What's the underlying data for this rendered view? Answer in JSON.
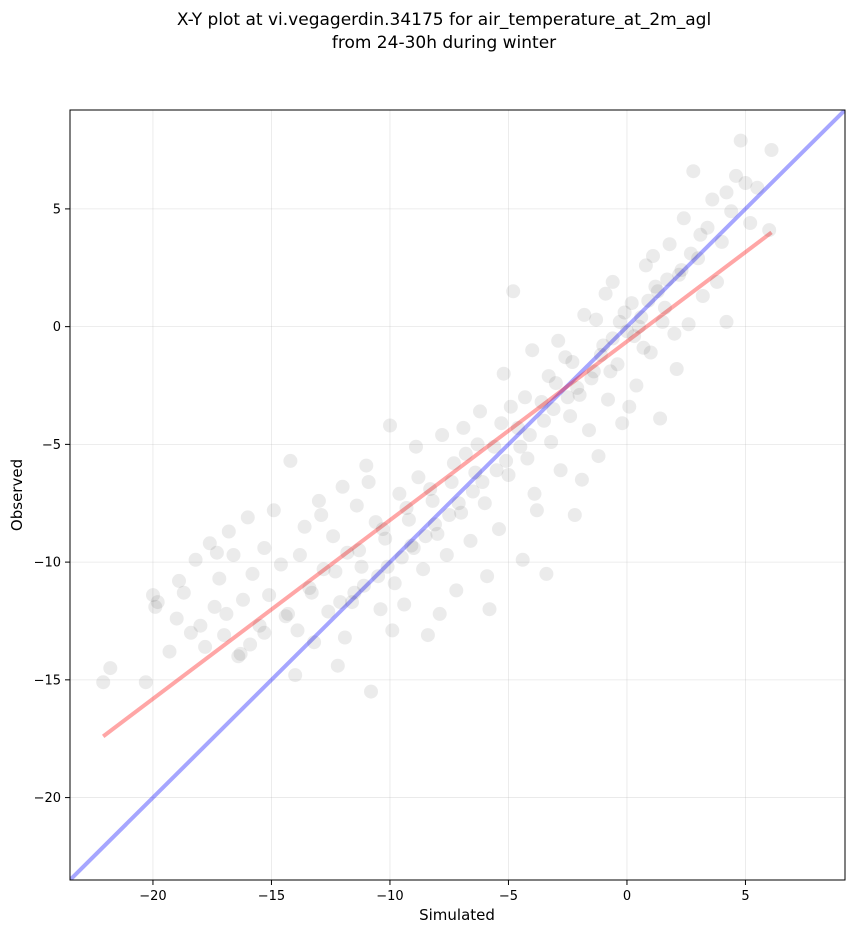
{
  "chart_data": {
    "type": "scatter",
    "title": "X-Y plot at vi.vegagerdin.34175 for air_temperature_at_2m_agl",
    "subtitle": "from 24-30h during winter",
    "xlabel": "Simulated",
    "ylabel": "Observed",
    "xlim": [
      -23.5,
      9.2
    ],
    "ylim": [
      -23.5,
      9.2
    ],
    "xticks": [
      -20,
      -15,
      -10,
      -5,
      0,
      5
    ],
    "yticks": [
      -20,
      -15,
      -10,
      -5,
      0,
      5
    ],
    "xtick_labels": [
      "−20",
      "−15",
      "−10",
      "−5",
      "0",
      "5"
    ],
    "ytick_labels": [
      "−20",
      "−15",
      "−10",
      "−5",
      "0",
      "5"
    ],
    "grid": true,
    "point_color": "#000000",
    "point_opacity": 0.08,
    "points": [
      [
        -22.1,
        -15.1
      ],
      [
        -21.8,
        -14.5
      ],
      [
        -20.3,
        -15.1
      ],
      [
        -20.0,
        -11.4
      ],
      [
        -19.8,
        -11.7
      ],
      [
        -19.3,
        -13.8
      ],
      [
        -19.0,
        -12.4
      ],
      [
        -18.7,
        -11.3
      ],
      [
        -18.4,
        -13.0
      ],
      [
        -18.2,
        -9.9
      ],
      [
        -18.0,
        -12.7
      ],
      [
        -17.8,
        -13.6
      ],
      [
        -17.6,
        -9.2
      ],
      [
        -17.4,
        -11.9
      ],
      [
        -17.2,
        -10.7
      ],
      [
        -17.0,
        -13.1
      ],
      [
        -16.8,
        -8.7
      ],
      [
        -16.6,
        -9.7
      ],
      [
        -16.4,
        -14.0
      ],
      [
        -16.2,
        -11.6
      ],
      [
        -16.0,
        -8.1
      ],
      [
        -15.8,
        -10.5
      ],
      [
        -15.5,
        -12.7
      ],
      [
        -15.3,
        -9.4
      ],
      [
        -15.1,
        -11.4
      ],
      [
        -14.9,
        -7.8
      ],
      [
        -14.6,
        -10.1
      ],
      [
        -14.4,
        -12.3
      ],
      [
        -14.2,
        -5.7
      ],
      [
        -14.0,
        -14.8
      ],
      [
        -13.8,
        -9.7
      ],
      [
        -13.6,
        -8.5
      ],
      [
        -13.4,
        -11.1
      ],
      [
        -13.2,
        -13.4
      ],
      [
        -13.0,
        -7.4
      ],
      [
        -12.8,
        -10.3
      ],
      [
        -12.6,
        -12.1
      ],
      [
        -12.4,
        -8.9
      ],
      [
        -12.2,
        -14.4
      ],
      [
        -12.0,
        -6.8
      ],
      [
        -11.8,
        -9.6
      ],
      [
        -11.6,
        -11.7
      ],
      [
        -11.4,
        -7.6
      ],
      [
        -11.2,
        -10.2
      ],
      [
        -11.0,
        -5.9
      ],
      [
        -10.8,
        -15.5
      ],
      [
        -10.6,
        -8.3
      ],
      [
        -10.4,
        -12.0
      ],
      [
        -10.2,
        -9.0
      ],
      [
        -10.0,
        -4.2
      ],
      [
        -9.8,
        -10.9
      ],
      [
        -9.6,
        -7.1
      ],
      [
        -9.4,
        -11.8
      ],
      [
        -9.2,
        -8.2
      ],
      [
        -9.0,
        -9.4
      ],
      [
        -8.8,
        -6.4
      ],
      [
        -8.6,
        -10.3
      ],
      [
        -8.4,
        -13.1
      ],
      [
        -8.2,
        -7.4
      ],
      [
        -8.0,
        -8.8
      ],
      [
        -7.8,
        -4.6
      ],
      [
        -7.6,
        -9.7
      ],
      [
        -7.4,
        -6.6
      ],
      [
        -7.2,
        -11.2
      ],
      [
        -7.0,
        -7.9
      ],
      [
        -6.8,
        -5.4
      ],
      [
        -6.6,
        -9.1
      ],
      [
        -6.4,
        -6.2
      ],
      [
        -6.2,
        -3.6
      ],
      [
        -6.0,
        -7.5
      ],
      [
        -5.8,
        -12.0
      ],
      [
        -5.6,
        -5.1
      ],
      [
        -5.4,
        -8.6
      ],
      [
        -5.2,
        -2.0
      ],
      [
        -5.0,
        -6.3
      ],
      [
        -4.8,
        1.5
      ],
      [
        -4.6,
        -4.3
      ],
      [
        -4.4,
        -9.9
      ],
      [
        -4.2,
        -5.6
      ],
      [
        -4.0,
        -1.0
      ],
      [
        -3.8,
        -7.8
      ],
      [
        -3.6,
        -3.2
      ],
      [
        -3.4,
        -10.5
      ],
      [
        -3.2,
        -4.9
      ],
      [
        -3.0,
        -2.4
      ],
      [
        -2.8,
        -6.1
      ],
      [
        -2.6,
        -1.3
      ],
      [
        -2.4,
        -3.8
      ],
      [
        -2.2,
        -8.0
      ],
      [
        -2.0,
        -2.9
      ],
      [
        -1.8,
        0.5
      ],
      [
        -1.6,
        -4.4
      ],
      [
        -1.4,
        -1.9
      ],
      [
        -1.2,
        -5.5
      ],
      [
        -1.0,
        -0.8
      ],
      [
        -0.8,
        -3.1
      ],
      [
        -0.6,
        1.9
      ],
      [
        -0.4,
        -1.6
      ],
      [
        -0.2,
        -4.1
      ],
      [
        0.0,
        -0.2
      ],
      [
        0.2,
        1.0
      ],
      [
        0.4,
        -2.5
      ],
      [
        0.6,
        0.4
      ],
      [
        0.8,
        2.6
      ],
      [
        1.0,
        -1.1
      ],
      [
        1.2,
        1.7
      ],
      [
        1.4,
        -3.9
      ],
      [
        1.6,
        0.8
      ],
      [
        1.8,
        3.5
      ],
      [
        2.0,
        -0.3
      ],
      [
        2.2,
        2.2
      ],
      [
        2.4,
        4.6
      ],
      [
        2.6,
        0.1
      ],
      [
        2.8,
        6.6
      ],
      [
        3.0,
        2.9
      ],
      [
        3.2,
        1.3
      ],
      [
        3.4,
        4.2
      ],
      [
        3.6,
        5.4
      ],
      [
        3.8,
        1.9
      ],
      [
        4.0,
        3.6
      ],
      [
        4.2,
        5.7
      ],
      [
        4.4,
        4.9
      ],
      [
        4.6,
        6.4
      ],
      [
        4.8,
        7.9
      ],
      [
        5.0,
        6.1
      ],
      [
        5.2,
        4.4
      ],
      [
        5.5,
        5.9
      ],
      [
        6.0,
        4.1
      ],
      [
        6.1,
        7.5
      ],
      [
        4.2,
        0.2
      ],
      [
        -19.9,
        -11.9
      ],
      [
        -18.9,
        -10.8
      ],
      [
        -16.9,
        -12.2
      ],
      [
        -15.9,
        -13.5
      ],
      [
        -13.9,
        -12.9
      ],
      [
        -12.9,
        -8.0
      ],
      [
        -11.9,
        -13.2
      ],
      [
        -10.9,
        -6.6
      ],
      [
        -9.9,
        -12.9
      ],
      [
        -8.9,
        -5.1
      ],
      [
        -7.9,
        -12.2
      ],
      [
        -6.9,
        -4.3
      ],
      [
        -5.9,
        -10.6
      ],
      [
        -4.9,
        -3.4
      ],
      [
        -3.9,
        -7.1
      ],
      [
        -2.9,
        -0.6
      ],
      [
        -1.9,
        -6.5
      ],
      [
        -0.9,
        1.4
      ],
      [
        0.1,
        -3.4
      ],
      [
        1.1,
        3.0
      ],
      [
        2.1,
        -1.8
      ],
      [
        3.1,
        3.9
      ],
      [
        -0.3,
        0.2
      ],
      [
        0.3,
        -0.4
      ],
      [
        -0.1,
        0.6
      ],
      [
        0.5,
        0.0
      ],
      [
        -0.6,
        -0.5
      ],
      [
        -1.1,
        -1.2
      ],
      [
        -1.5,
        -2.2
      ],
      [
        -2.1,
        -2.6
      ],
      [
        -2.5,
        -3.0
      ],
      [
        -3.1,
        -3.5
      ],
      [
        -3.5,
        -4.0
      ],
      [
        -4.1,
        -4.6
      ],
      [
        -4.5,
        -5.1
      ],
      [
        -5.1,
        -5.7
      ],
      [
        -5.5,
        -6.1
      ],
      [
        -6.1,
        -6.6
      ],
      [
        -6.5,
        -7.0
      ],
      [
        -7.1,
        -7.5
      ],
      [
        -7.5,
        -8.0
      ],
      [
        -8.1,
        -8.4
      ],
      [
        -8.5,
        -8.9
      ],
      [
        -9.1,
        -9.3
      ],
      [
        -9.5,
        -9.8
      ],
      [
        -10.1,
        -10.2
      ],
      [
        -10.5,
        -10.6
      ],
      [
        -11.1,
        -11.0
      ],
      [
        -11.5,
        -11.3
      ],
      [
        -12.1,
        -11.7
      ],
      [
        0.9,
        1.1
      ],
      [
        1.3,
        1.5
      ],
      [
        1.7,
        2.0
      ],
      [
        2.3,
        2.4
      ],
      [
        2.7,
        3.1
      ],
      [
        -1.3,
        0.3
      ],
      [
        -0.7,
        -1.9
      ],
      [
        0.7,
        -0.9
      ],
      [
        1.5,
        0.2
      ],
      [
        -2.3,
        -1.5
      ],
      [
        -3.3,
        -2.1
      ],
      [
        -4.3,
        -3.0
      ],
      [
        -5.3,
        -4.1
      ],
      [
        -6.3,
        -5.0
      ],
      [
        -7.3,
        -5.8
      ],
      [
        -8.3,
        -6.9
      ],
      [
        -9.3,
        -7.7
      ],
      [
        -10.3,
        -8.6
      ],
      [
        -11.3,
        -9.5
      ],
      [
        -12.3,
        -10.4
      ],
      [
        -13.3,
        -11.3
      ],
      [
        -14.3,
        -12.2
      ],
      [
        -15.3,
        -13.0
      ],
      [
        -16.3,
        -13.9
      ],
      [
        -17.3,
        -9.6
      ]
    ],
    "lines": [
      {
        "x": [
          -23.5,
          9.2
        ],
        "y": [
          -23.5,
          9.2
        ],
        "color": "#0000ff",
        "opacity": 0.35
      },
      {
        "x": [
          -22.1,
          6.1
        ],
        "y": [
          -17.4,
          4.0
        ],
        "color": "#ff0000",
        "opacity": 0.35
      }
    ]
  }
}
